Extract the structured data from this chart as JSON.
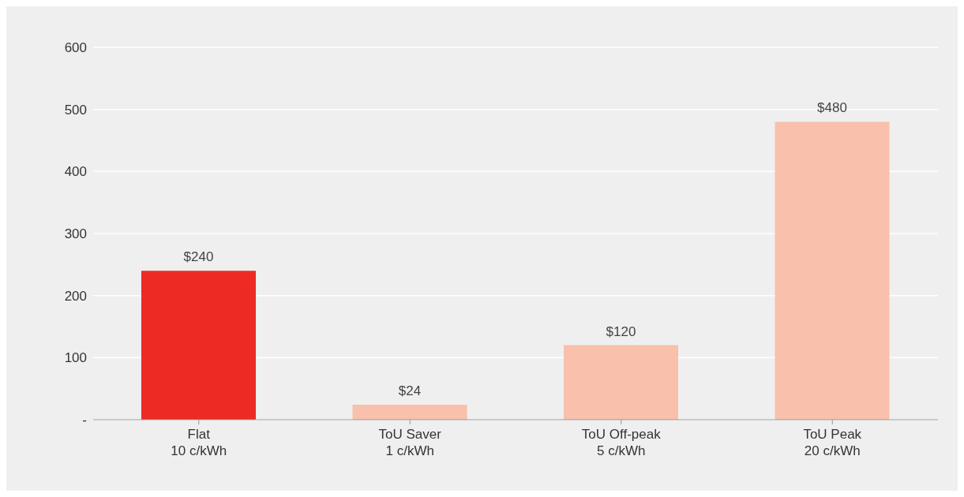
{
  "chart_data": {
    "type": "bar",
    "categories": [
      "Flat\n10 c/kWh",
      "ToU Saver\n1 c/kWh",
      "ToU Off-peak\n5 c/kWh",
      "ToU Peak\n20 c/kWh"
    ],
    "values": [
      240,
      24,
      120,
      480
    ],
    "colors": [
      "#ee2a24",
      "#f9c0ab",
      "#f9c0ab",
      "#f9c0ab"
    ],
    "value_labels": [
      "$240",
      "$24",
      "$120",
      "$480"
    ],
    "ylim": [
      0,
      600
    ],
    "yticks": [
      {
        "value": 0,
        "label": "-"
      },
      100,
      200,
      300,
      400,
      500,
      600
    ],
    "grid": "y"
  }
}
